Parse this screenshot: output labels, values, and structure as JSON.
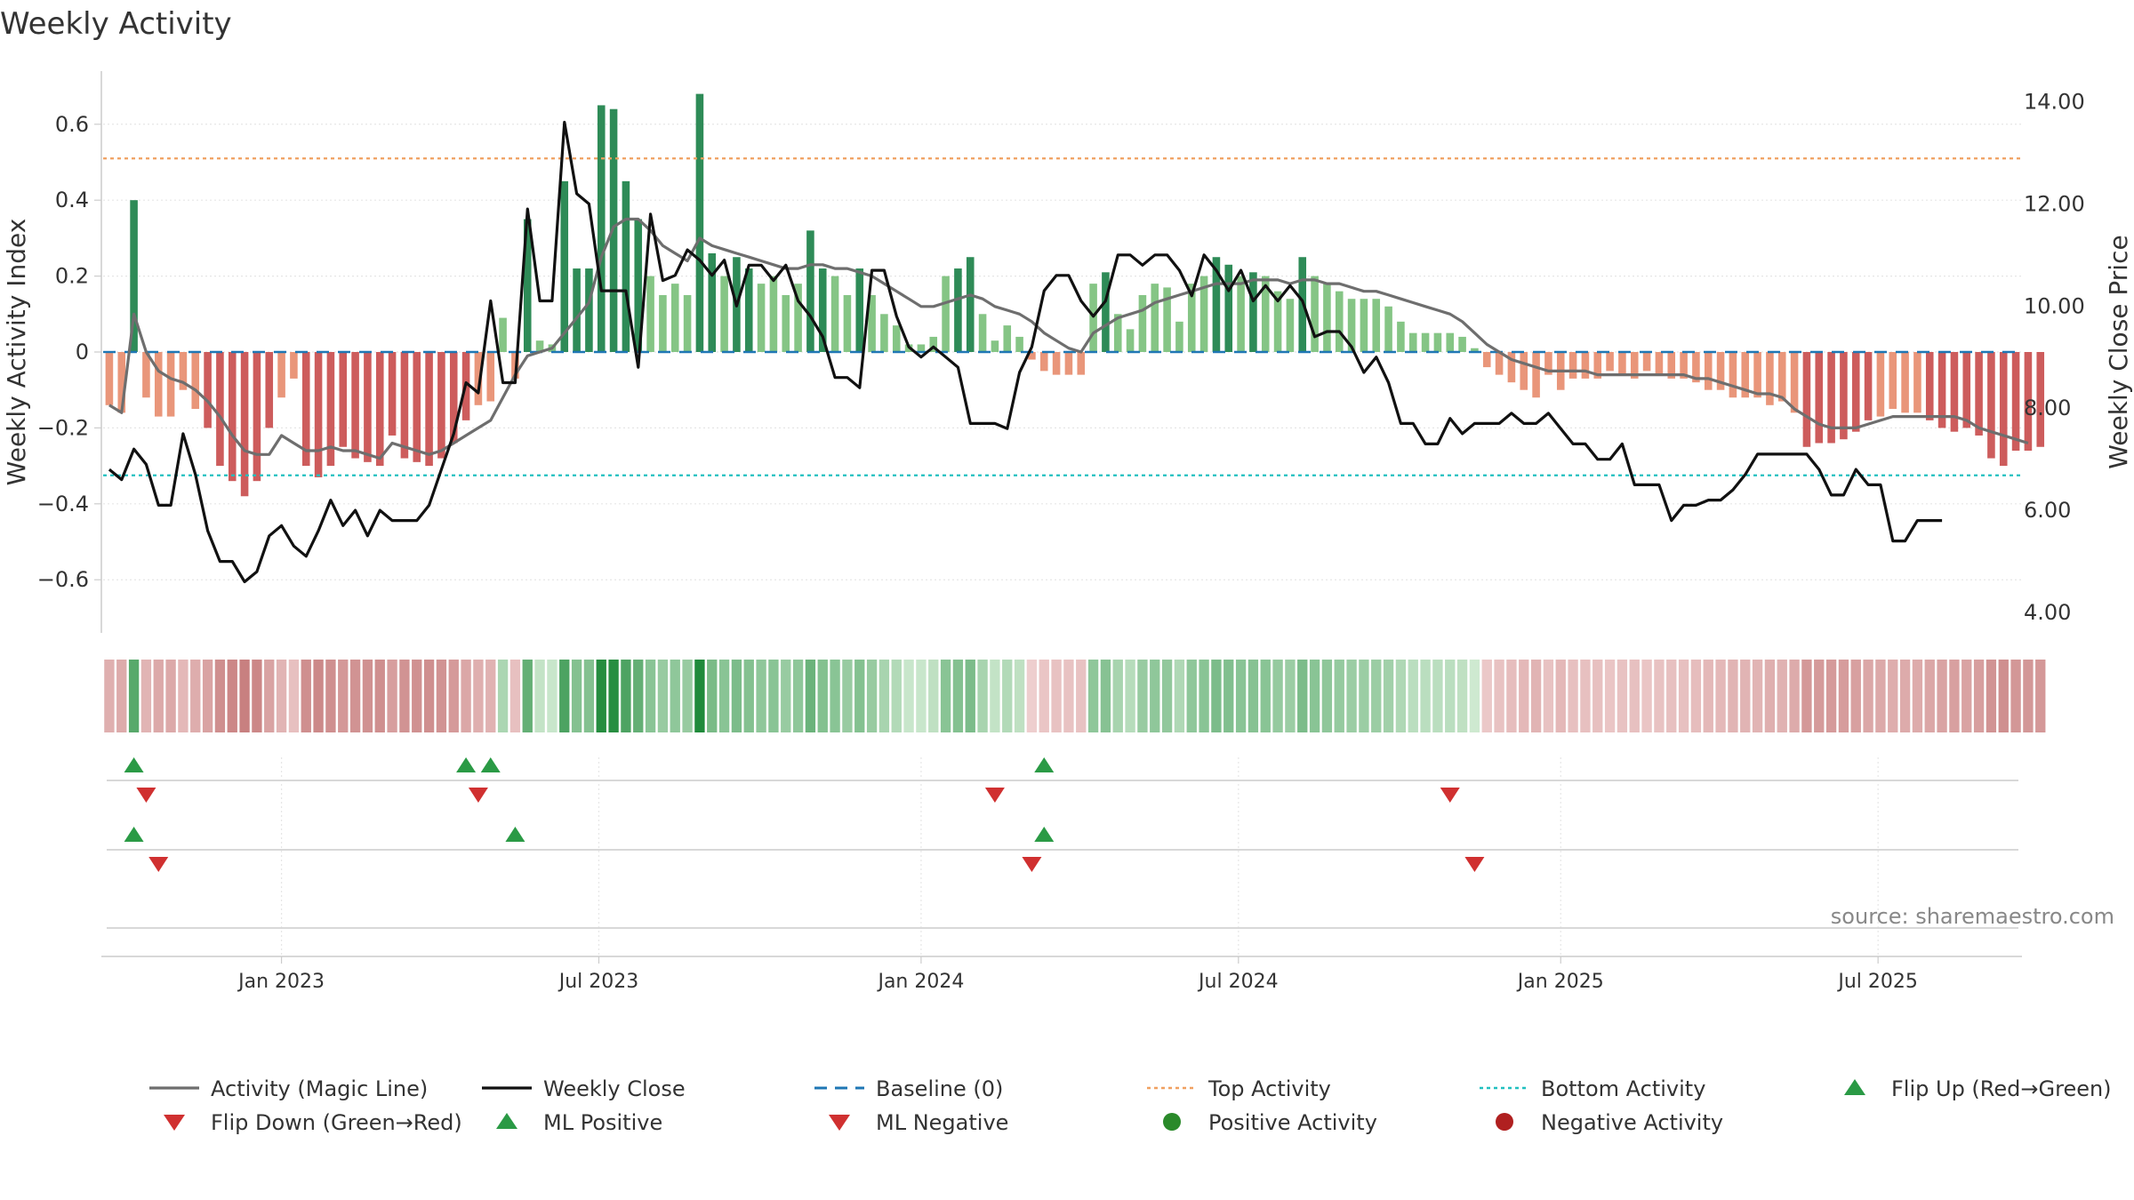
{
  "chart_data": {
    "type": "bar+line",
    "title": "Weekly Activity",
    "ylabel_left": "Weekly Activity Index",
    "ylabel_right": "Weekly Close Price",
    "ylim_left": [
      -0.74,
      0.74
    ],
    "ylim_right": [
      3.6,
      14.6
    ],
    "yticks_left": [
      {
        "value": 0.6,
        "label": "0.6"
      },
      {
        "value": 0.4,
        "label": "0.4"
      },
      {
        "value": 0.2,
        "label": "0.2"
      },
      {
        "value": 0,
        "label": "0"
      },
      {
        "value": -0.2,
        "label": "−0.2"
      },
      {
        "value": -0.4,
        "label": "−0.4"
      },
      {
        "value": -0.6,
        "label": "−0.6"
      }
    ],
    "yticks_right": [
      {
        "value": 14,
        "label": "14.00"
      },
      {
        "value": 12,
        "label": "12.00"
      },
      {
        "value": 10,
        "label": "10.00"
      },
      {
        "value": 8,
        "label": "8.00"
      },
      {
        "value": 6,
        "label": "6.00"
      },
      {
        "value": 4,
        "label": "4.00"
      }
    ],
    "x_range_weeks": [
      0,
      156
    ],
    "xticks": [
      {
        "week": 14.5,
        "label": "Jan 2023"
      },
      {
        "week": 40.3,
        "label": "Jul 2023"
      },
      {
        "week": 66.5,
        "label": "Jan 2024"
      },
      {
        "week": 92.3,
        "label": "Jul 2024"
      },
      {
        "week": 118.5,
        "label": "Jan 2025"
      },
      {
        "week": 144.3,
        "label": "Jul 2025"
      }
    ],
    "top_activity": 0.51,
    "bottom_activity": -0.325,
    "baseline": 0,
    "series": [
      {
        "name": "Weekly Activity",
        "kind": "bar",
        "values": [
          -0.14,
          -0.16,
          0.4,
          -0.12,
          -0.17,
          -0.17,
          -0.1,
          -0.15,
          -0.2,
          -0.3,
          -0.34,
          -0.38,
          -0.34,
          -0.2,
          -0.12,
          -0.07,
          -0.3,
          -0.33,
          -0.3,
          -0.25,
          -0.28,
          -0.29,
          -0.3,
          -0.22,
          -0.28,
          -0.29,
          -0.3,
          -0.28,
          -0.24,
          -0.18,
          -0.14,
          -0.13,
          0.09,
          -0.07,
          0.35,
          0.03,
          0.02,
          0.45,
          0.22,
          0.22,
          0.65,
          0.64,
          0.45,
          0.35,
          0.2,
          0.15,
          0.18,
          0.15,
          0.68,
          0.26,
          0.2,
          0.25,
          0.22,
          0.18,
          0.2,
          0.15,
          0.18,
          0.32,
          0.22,
          0.2,
          0.15,
          0.22,
          0.15,
          0.1,
          0.07,
          0.02,
          0.02,
          0.04,
          0.2,
          0.22,
          0.25,
          0.1,
          0.03,
          0.07,
          0.04,
          -0.02,
          -0.05,
          -0.06,
          -0.06,
          -0.06,
          0.18,
          0.21,
          0.1,
          0.06,
          0.15,
          0.18,
          0.17,
          0.08,
          0.18,
          0.2,
          0.25,
          0.23,
          0.2,
          0.21,
          0.2,
          0.16,
          0.14,
          0.25,
          0.2,
          0.18,
          0.16,
          0.14,
          0.14,
          0.14,
          0.12,
          0.08,
          0.05,
          0.05,
          0.05,
          0.05,
          0.04,
          0.01,
          -0.04,
          -0.06,
          -0.08,
          -0.1,
          -0.12,
          -0.06,
          -0.1,
          -0.07,
          -0.07,
          -0.07,
          -0.05,
          -0.06,
          -0.07,
          -0.05,
          -0.06,
          -0.07,
          -0.07,
          -0.08,
          -0.1,
          -0.1,
          -0.12,
          -0.12,
          -0.12,
          -0.14,
          -0.13,
          -0.16,
          -0.25,
          -0.24,
          -0.24,
          -0.23,
          -0.21,
          -0.18,
          -0.17,
          -0.15,
          -0.16,
          -0.16,
          -0.18,
          -0.2,
          -0.21,
          -0.2,
          -0.22,
          -0.28,
          -0.3,
          -0.26,
          -0.26,
          -0.25
        ]
      },
      {
        "name": "Activity (Magic Line)",
        "kind": "line",
        "axis": "left",
        "values": [
          -0.14,
          -0.16,
          0.1,
          0.0,
          -0.05,
          -0.07,
          -0.08,
          -0.1,
          -0.13,
          -0.17,
          -0.22,
          -0.26,
          -0.27,
          -0.27,
          -0.22,
          -0.24,
          -0.26,
          -0.26,
          -0.25,
          -0.26,
          -0.26,
          -0.27,
          -0.28,
          -0.24,
          -0.25,
          -0.26,
          -0.27,
          -0.26,
          -0.24,
          -0.22,
          -0.2,
          -0.18,
          -0.12,
          -0.06,
          -0.01,
          0.0,
          0.01,
          0.05,
          0.09,
          0.13,
          0.25,
          0.33,
          0.35,
          0.35,
          0.32,
          0.28,
          0.26,
          0.24,
          0.3,
          0.28,
          0.27,
          0.26,
          0.25,
          0.24,
          0.23,
          0.22,
          0.22,
          0.23,
          0.23,
          0.22,
          0.22,
          0.21,
          0.2,
          0.18,
          0.16,
          0.14,
          0.12,
          0.12,
          0.13,
          0.14,
          0.15,
          0.14,
          0.12,
          0.11,
          0.1,
          0.08,
          0.05,
          0.03,
          0.01,
          0.0,
          0.05,
          0.07,
          0.09,
          0.1,
          0.11,
          0.13,
          0.14,
          0.15,
          0.16,
          0.17,
          0.18,
          0.18,
          0.18,
          0.19,
          0.19,
          0.19,
          0.18,
          0.19,
          0.19,
          0.18,
          0.18,
          0.17,
          0.16,
          0.16,
          0.15,
          0.14,
          0.13,
          0.12,
          0.11,
          0.1,
          0.08,
          0.05,
          0.02,
          0.0,
          -0.02,
          -0.03,
          -0.04,
          -0.05,
          -0.05,
          -0.05,
          -0.05,
          -0.06,
          -0.06,
          -0.06,
          -0.06,
          -0.06,
          -0.06,
          -0.06,
          -0.06,
          -0.07,
          -0.07,
          -0.08,
          -0.09,
          -0.1,
          -0.11,
          -0.11,
          -0.12,
          -0.15,
          -0.17,
          -0.19,
          -0.2,
          -0.2,
          -0.2,
          -0.19,
          -0.18,
          -0.17,
          -0.17,
          -0.17,
          -0.17,
          -0.17,
          -0.17,
          -0.18,
          -0.2,
          -0.21,
          -0.22,
          -0.23,
          -0.24
        ]
      },
      {
        "name": "Weekly Close",
        "kind": "line",
        "axis": "right",
        "values": [
          6.8,
          6.6,
          7.2,
          6.9,
          6.1,
          6.1,
          7.5,
          6.7,
          5.6,
          5.0,
          5.0,
          4.6,
          4.8,
          5.5,
          5.7,
          5.3,
          5.1,
          5.6,
          6.2,
          5.7,
          6.0,
          5.5,
          6.0,
          5.8,
          5.8,
          5.8,
          6.1,
          6.8,
          7.5,
          8.5,
          8.3,
          10.1,
          8.5,
          8.5,
          11.9,
          10.1,
          10.1,
          13.6,
          12.2,
          12.0,
          10.3,
          10.3,
          10.3,
          8.8,
          11.8,
          10.5,
          10.6,
          11.1,
          10.9,
          10.6,
          10.9,
          10.0,
          10.8,
          10.8,
          10.5,
          10.8,
          10.1,
          9.8,
          9.4,
          8.6,
          8.6,
          8.4,
          10.7,
          10.7,
          9.8,
          9.2,
          9.0,
          9.2,
          9.0,
          8.8,
          7.7,
          7.7,
          7.7,
          7.6,
          8.7,
          9.2,
          10.3,
          10.6,
          10.6,
          10.1,
          9.8,
          10.1,
          11.0,
          11.0,
          10.8,
          11.0,
          11.0,
          10.7,
          10.2,
          11.0,
          10.7,
          10.3,
          10.7,
          10.1,
          10.4,
          10.1,
          10.4,
          10.1,
          9.4,
          9.5,
          9.5,
          9.2,
          8.7,
          9.0,
          8.5,
          7.7,
          7.7,
          7.3,
          7.3,
          7.8,
          7.5,
          7.7,
          7.7,
          7.7,
          7.9,
          7.7,
          7.7,
          7.9,
          7.6,
          7.3,
          7.3,
          7.0,
          7.0,
          7.3,
          6.5,
          6.5,
          6.5,
          5.8,
          6.1,
          6.1,
          6.2,
          6.2,
          6.4,
          6.7,
          7.1,
          7.1,
          7.1,
          7.1,
          7.1,
          6.8,
          6.3,
          6.3,
          6.8,
          6.5,
          6.5,
          5.4,
          5.4,
          5.8,
          5.8,
          5.8
        ]
      }
    ],
    "signal_rows": [
      {
        "name": "Flip",
        "up": [
          2,
          29,
          31,
          76
        ],
        "down": [
          3,
          30,
          72,
          109
        ]
      },
      {
        "name": "ML",
        "up": [
          2,
          33,
          76
        ],
        "down": [
          4,
          75,
          111
        ]
      },
      {
        "name": "Activity",
        "up": [],
        "down": []
      }
    ],
    "legend": {
      "placement": "bottom",
      "items": [
        {
          "label": "Activity (Magic Line)",
          "style": "line",
          "color": "#6e6e6e"
        },
        {
          "label": "Weekly Close",
          "style": "line",
          "color": "#111111"
        },
        {
          "label": "Baseline (0)",
          "style": "dashed",
          "color": "#1f77b4"
        },
        {
          "label": "Top Activity",
          "style": "dotted",
          "color": "#f0a060"
        },
        {
          "label": "Bottom Activity",
          "style": "dotted",
          "color": "#20c0c0"
        },
        {
          "label": "Flip Up (Red→Green)",
          "style": "triangle-up",
          "color": "#2a9a45"
        },
        {
          "label": "Flip Down (Green→Red)",
          "style": "triangle-down",
          "color": "#d03030"
        },
        {
          "label": "ML Positive",
          "style": "triangle-up",
          "color": "#2a9a45"
        },
        {
          "label": "ML Negative",
          "style": "triangle-down",
          "color": "#d03030"
        },
        {
          "label": "Positive Activity",
          "style": "circle",
          "color": "#2a8a2a"
        },
        {
          "label": "Negative Activity",
          "style": "circle",
          "color": "#b02020"
        }
      ]
    },
    "source": "source: sharemaestro.com"
  }
}
